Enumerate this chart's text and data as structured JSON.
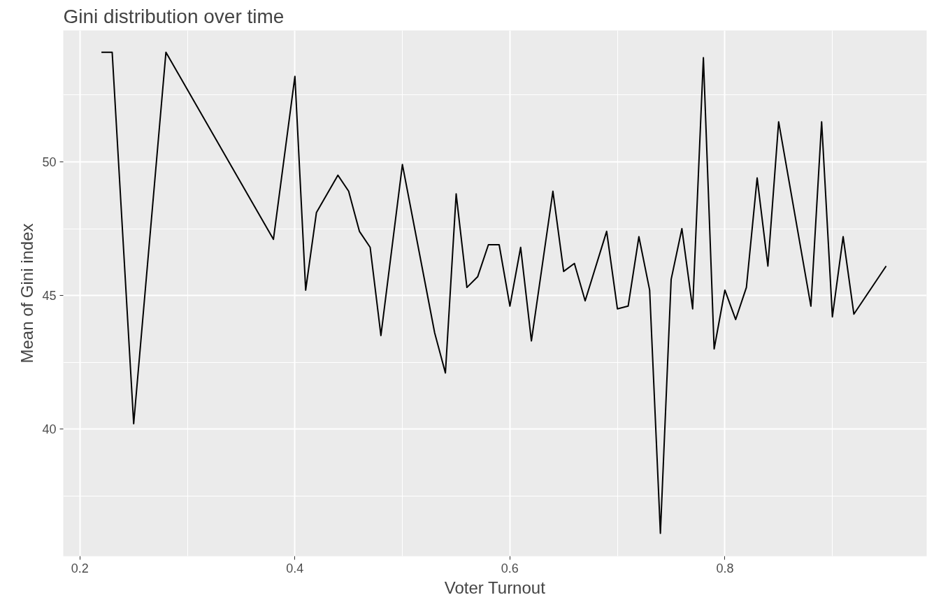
{
  "chart_data": {
    "type": "line",
    "title": "Gini distribution over time",
    "xlabel": "Voter Turnout",
    "ylabel": "Mean of Gini index",
    "x": [
      0.22,
      0.23,
      0.25,
      0.28,
      0.38,
      0.4,
      0.41,
      0.42,
      0.44,
      0.45,
      0.46,
      0.47,
      0.48,
      0.5,
      0.53,
      0.54,
      0.55,
      0.56,
      0.57,
      0.58,
      0.59,
      0.6,
      0.61,
      0.62,
      0.64,
      0.65,
      0.66,
      0.67,
      0.69,
      0.7,
      0.71,
      0.72,
      0.73,
      0.74,
      0.75,
      0.76,
      0.77,
      0.78,
      0.79,
      0.8,
      0.81,
      0.82,
      0.83,
      0.84,
      0.85,
      0.88,
      0.89,
      0.9,
      0.91,
      0.92,
      0.95
    ],
    "series": [
      {
        "color": "#000000",
        "values": [
          54.1,
          54.1,
          40.2,
          54.1,
          47.1,
          53.2,
          45.2,
          48.1,
          49.5,
          48.9,
          47.4,
          46.8,
          43.5,
          49.9,
          43.6,
          42.1,
          48.8,
          45.3,
          45.7,
          46.9,
          46.9,
          44.6,
          46.8,
          43.3,
          48.9,
          45.9,
          46.2,
          44.8,
          47.4,
          44.5,
          44.6,
          47.2,
          45.2,
          36.1,
          45.6,
          47.5,
          44.5,
          53.9,
          43.0,
          45.2,
          44.1,
          45.3,
          49.4,
          46.1,
          51.5,
          44.6,
          51.5,
          44.2,
          47.2,
          44.3,
          46.1
        ]
      }
    ],
    "xlim": [
      0.1845,
      0.9877
    ],
    "ylim": [
      35.24,
      54.92
    ],
    "xticks": [
      0.2,
      {
        "value": 0.3,
        "label": null
      },
      0.4,
      {
        "value": 0.5,
        "label": null
      },
      0.6,
      {
        "value": 0.7,
        "label": null
      },
      0.8,
      {
        "value": 0.9,
        "label": null
      }
    ],
    "yticks": [
      {
        "value": 37.5,
        "label": null
      },
      40,
      {
        "value": 42.5,
        "label": null
      },
      45,
      {
        "value": 47.5,
        "label": null
      },
      50,
      {
        "value": 52.5,
        "label": null
      }
    ],
    "grid": true,
    "marker": "none",
    "line_style": "solid"
  }
}
